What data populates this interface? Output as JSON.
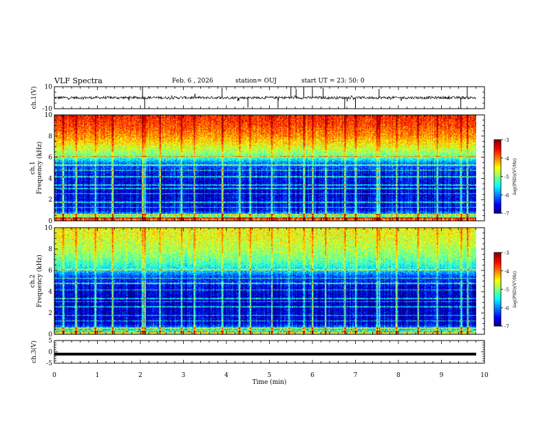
{
  "header": {
    "title": "VLF Spectra",
    "date": "Feb. 6 , 2026",
    "station": "station= OUJ",
    "start": "start UT = 23: 50: 0"
  },
  "chart_data": [
    {
      "type": "line",
      "panel": "ch1-waveform",
      "ylabel": "ch.1(V)",
      "ylim": [
        -10,
        10
      ],
      "yticks": [
        "10",
        "-10"
      ],
      "xlim": [
        0,
        10
      ],
      "baseline": 0,
      "noise_amplitude_v": 1.2,
      "spikes": [
        {
          "x": 2.05,
          "y": 10
        },
        {
          "x": 2.1,
          "y": -10
        },
        {
          "x": 3.9,
          "y": 9
        },
        {
          "x": 5.5,
          "y": 10
        },
        {
          "x": 5.62,
          "y": 8
        },
        {
          "x": 5.8,
          "y": 10
        },
        {
          "x": 6.0,
          "y": 8
        },
        {
          "x": 6.25,
          "y": 9
        },
        {
          "x": 6.75,
          "y": -10
        },
        {
          "x": 7.0,
          "y": -10
        },
        {
          "x": 7.55,
          "y": 8
        },
        {
          "x": 9.6,
          "y": 10
        },
        {
          "x": 9.45,
          "y": -10
        },
        {
          "x": 4.5,
          "y": -9
        },
        {
          "x": 5.2,
          "y": -9
        }
      ],
      "color": "#000000"
    },
    {
      "type": "heatmap",
      "panel": "ch1-spectrogram",
      "ylabel": "ch.1\nFrequency (kHz)",
      "ylabel_line1": "ch.1",
      "ylabel_line2": "Frequency (kHz)",
      "ylim": [
        0,
        10
      ],
      "yticks": [
        "0",
        "2",
        "4",
        "6",
        "8",
        "10"
      ],
      "xlim": [
        0,
        10
      ],
      "colorbar": {
        "range": [
          -7,
          -3
        ],
        "ticks": [
          "-3",
          "-4",
          "-5",
          "-6",
          "-7"
        ],
        "label": "log(PSD)(V²/Hz)",
        "label_text": "log(PSD)(V",
        "label_sup": "2",
        "label_tail": "/Hz)"
      },
      "profile_log_psd": [
        {
          "f": 0.0,
          "v": -3.5
        },
        {
          "f": 0.6,
          "v": -5.6
        },
        {
          "f": 1.0,
          "v": -6.5
        },
        {
          "f": 3.0,
          "v": -6.7
        },
        {
          "f": 4.5,
          "v": -6.5
        },
        {
          "f": 5.5,
          "v": -6.0
        },
        {
          "f": 6.0,
          "v": -5.2
        },
        {
          "f": 7.0,
          "v": -4.6
        },
        {
          "f": 8.0,
          "v": -4.1
        },
        {
          "f": 9.0,
          "v": -3.8
        },
        {
          "f": 10.0,
          "v": -3.6
        }
      ],
      "line_frequencies_khz": [
        0.3,
        0.6,
        1.3,
        1.8,
        2.6,
        3.1,
        3.4,
        4.2,
        4.8,
        5.3,
        6.1
      ],
      "impulse_times_min": [
        0.2,
        0.5,
        0.95,
        1.35,
        2.05,
        2.1,
        2.45,
        2.95,
        3.25,
        3.9,
        4.3,
        4.55,
        5.05,
        5.45,
        5.8,
        6.0,
        6.3,
        6.75,
        7.0,
        7.5,
        7.55,
        7.95,
        8.45,
        8.9,
        9.45,
        9.6
      ]
    },
    {
      "type": "heatmap",
      "panel": "ch2-spectrogram",
      "ylabel": "ch.2\nFrequency (kHz)",
      "ylabel_line1": "ch.2",
      "ylabel_line2": "Frequency (kHz)",
      "ylim": [
        0,
        10
      ],
      "yticks": [
        "0",
        "2",
        "4",
        "6",
        "8",
        "10"
      ],
      "xlim": [
        0,
        10
      ],
      "colorbar": {
        "range": [
          -7,
          -3
        ],
        "ticks": [
          "-3",
          "-4",
          "-5",
          "-6",
          "-7"
        ],
        "label": "log(PSD)(V²/Hz)",
        "label_text": "log(PSD)(V",
        "label_sup": "2",
        "label_tail": "/Hz)"
      },
      "profile_log_psd": [
        {
          "f": 0.0,
          "v": -4.5
        },
        {
          "f": 0.6,
          "v": -5.8
        },
        {
          "f": 1.0,
          "v": -6.6
        },
        {
          "f": 3.0,
          "v": -6.8
        },
        {
          "f": 4.5,
          "v": -6.6
        },
        {
          "f": 5.5,
          "v": -6.2
        },
        {
          "f": 6.0,
          "v": -5.6
        },
        {
          "f": 7.0,
          "v": -5.1
        },
        {
          "f": 8.0,
          "v": -4.8
        },
        {
          "f": 9.0,
          "v": -4.6
        },
        {
          "f": 10.0,
          "v": -4.5
        }
      ],
      "line_frequencies_khz": [
        0.3,
        0.6,
        1.3,
        1.8,
        2.6,
        3.1,
        3.4,
        4.2,
        4.8,
        5.3,
        6.1
      ],
      "impulse_times_min": [
        0.2,
        0.5,
        0.95,
        1.35,
        2.05,
        2.1,
        2.45,
        2.95,
        3.25,
        3.9,
        4.3,
        4.55,
        5.05,
        5.45,
        5.8,
        6.0,
        6.3,
        6.75,
        7.0,
        7.5,
        7.55,
        7.95,
        8.45,
        8.9,
        9.45,
        9.6
      ]
    },
    {
      "type": "line",
      "panel": "ch3-waveform",
      "ylabel": "ch.3(V)",
      "ylim": [
        -5,
        5
      ],
      "yticks": [
        "5",
        "0",
        "-5"
      ],
      "xlim": [
        0,
        10
      ],
      "baseline": -1,
      "color": "#000000"
    }
  ],
  "xaxis": {
    "label": "Time (min)",
    "range": [
      0,
      10
    ],
    "ticks": [
      "0",
      "1",
      "2",
      "3",
      "4",
      "5",
      "6",
      "7",
      "8",
      "9",
      "10"
    ]
  }
}
